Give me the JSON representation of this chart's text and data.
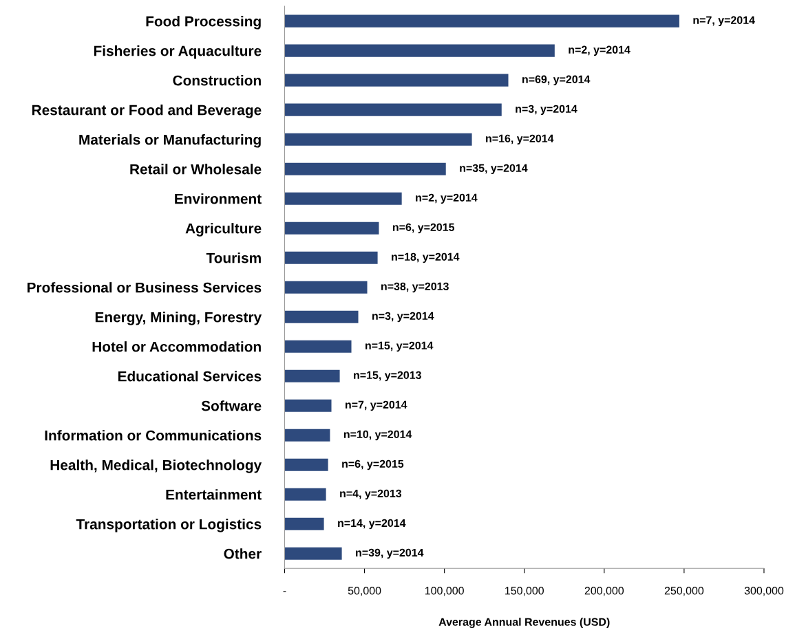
{
  "chart_data": {
    "type": "bar",
    "orientation": "horizontal",
    "xlabel": "Average Annual Revenues (USD)",
    "categories": [
      "Food Processing",
      "Fisheries or Aquaculture",
      "Construction",
      "Restaurant or Food and Beverage",
      "Materials or Manufacturing",
      "Retail or Wholesale",
      "Environment",
      "Agriculture",
      "Tourism",
      "Professional or Business Services",
      "Energy, Mining, Forestry",
      "Hotel or Accommodation",
      "Educational Services",
      "Software",
      "Information or Communications",
      "Health, Medical, Biotechnology",
      "Entertainment",
      "Transportation or Logistics",
      "Other"
    ],
    "values": [
      247000,
      169000,
      140000,
      135800,
      117200,
      100900,
      73300,
      59000,
      58200,
      51700,
      46100,
      41800,
      34500,
      29300,
      28400,
      27200,
      25900,
      24600,
      35800
    ],
    "value_labels": [
      "n=7, y=2014",
      "n=2, y=2014",
      "n=69, y=2014",
      "n=3, y=2014",
      "n=16, y=2014",
      "n=35, y=2014",
      "n=2, y=2014",
      "n=6, y=2015",
      "n=18, y=2014",
      "n=38, y=2013",
      "n=3, y=2014",
      "n=15, y=2014",
      "n=15, y=2013",
      "n=7, y=2014",
      "n=10, y=2014",
      "n=6, y=2015",
      "n=4, y=2013",
      "n=14, y=2014",
      "n=39, y=2014"
    ],
    "color": "#2e4a7d",
    "xlim": [
      0,
      300000
    ],
    "xticks": [
      {
        "value": 0,
        "label": "-"
      },
      {
        "value": 50000,
        "label": "50,000"
      },
      {
        "value": 100000,
        "label": "100,000"
      },
      {
        "value": 150000,
        "label": "150,000"
      },
      {
        "value": 200000,
        "label": "200,000"
      },
      {
        "value": 250000,
        "label": "250,000"
      },
      {
        "value": 300000,
        "label": "300,000"
      }
    ],
    "grid": false,
    "legend": false
  }
}
